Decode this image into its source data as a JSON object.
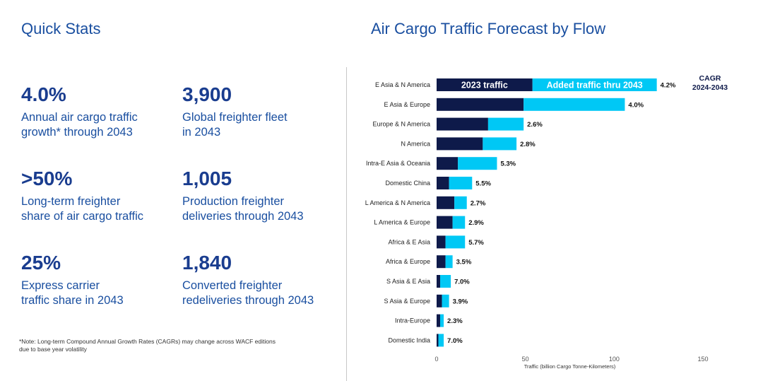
{
  "left": {
    "title": "Quick Stats",
    "stats": [
      {
        "value": "4.0%",
        "text": "Annual air cargo traffic\ngrowth* through 2043"
      },
      {
        "value": "3,900",
        "text": "Global freighter fleet\nin 2043"
      },
      {
        "value": ">50%",
        "text": "Long-term freighter\nshare of air cargo traffic"
      },
      {
        "value": "1,005",
        "text": "Production freighter\ndeliveries through 2043"
      },
      {
        "value": "25%",
        "text": "Express carrier\ntraffic share in 2043"
      },
      {
        "value": "1,840",
        "text": "Converted freighter\nredeliveries through 2043"
      }
    ],
    "note": "*Note: Long-term Compound Annual Growth Rates (CAGRs) may change across WACF editions due to base year volatility"
  },
  "chart_data": {
    "type": "bar",
    "orientation": "horizontal",
    "stacked": true,
    "title": "Air Cargo Traffic Forecast by Flow",
    "xlabel": "Traffic (billion Cargo Tonne-Kilometers)",
    "xlim": [
      0,
      150
    ],
    "xticks": [
      0,
      50,
      100,
      150
    ],
    "categories": [
      "E Asia & N America",
      "E Asia & Europe",
      "Europe & N America",
      "N America",
      "Intra-E Asia & Oceania",
      "Domestic China",
      "L America & N America",
      "L America & Europe",
      "Africa & E Asia",
      "Africa & Europe",
      "S Asia & E Asia",
      "S Asia & Europe",
      "Intra-Europe",
      "Domestic India"
    ],
    "series": [
      {
        "name": "2023 traffic",
        "color": "#0e1a4a",
        "values": [
          54,
          49,
          29,
          26,
          12,
          7,
          10,
          9,
          5,
          5,
          2,
          3,
          2,
          1
        ]
      },
      {
        "name": "Added traffic thru 2043",
        "color": "#00c8f5",
        "values": [
          70,
          57,
          20,
          19,
          22,
          13,
          7,
          7,
          11,
          4,
          6,
          4,
          2,
          3
        ]
      }
    ],
    "cagr_labels": [
      "4.2%",
      "4.0%",
      "2.6%",
      "2.8%",
      "5.3%",
      "5.5%",
      "2.7%",
      "2.9%",
      "5.7%",
      "3.5%",
      "7.0%",
      "3.9%",
      "2.3%",
      "7.0%"
    ],
    "annotation": {
      "line1": "CAGR",
      "line2": "2024-2043"
    }
  }
}
